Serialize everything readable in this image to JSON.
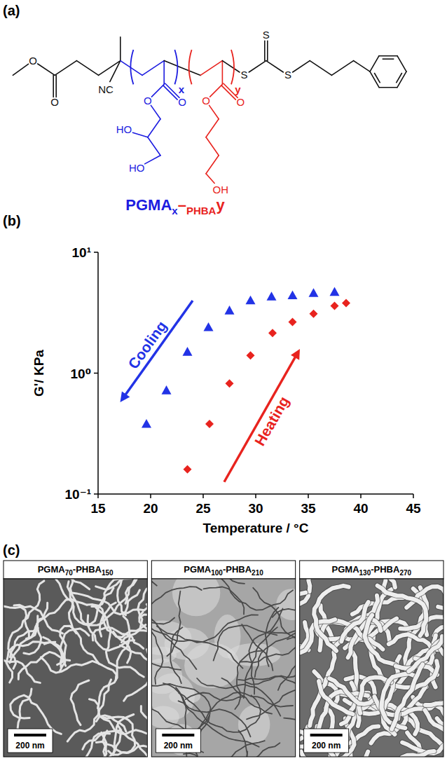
{
  "panel_labels": [
    "(a)",
    "(b)",
    "(c)"
  ],
  "structure": {
    "atoms": [
      "O",
      "O",
      "NC",
      "O",
      "O",
      "HO",
      "HO",
      "O",
      "O",
      "OH",
      "S",
      "S",
      "S"
    ],
    "subscripts": [
      "x",
      "y"
    ],
    "name": [
      "PGMA",
      "x",
      "–",
      "PHBA",
      "y"
    ],
    "colors": [
      "#1c1ce0",
      "#e8231e"
    ]
  },
  "chart_data": {
    "type": "scatter",
    "x_label": "Temperature / °C",
    "y_label": "G'/ KPa",
    "log": "y",
    "grid": false,
    "xlim": [
      15,
      45
    ],
    "xticks": [
      15,
      20,
      25,
      30,
      35,
      40,
      45
    ],
    "ylim": [
      0.1,
      10
    ],
    "yticks": [
      {
        "value": 0.1,
        "label": "10⁻¹"
      },
      {
        "value": 1,
        "label": "10⁰"
      },
      {
        "value": 10,
        "label": "10¹"
      }
    ],
    "series": [
      {
        "name": "Cooling",
        "color": "#2233e6",
        "marker": "triangle",
        "x": [
          19.6,
          21.5,
          23.5,
          25.5,
          27.5,
          29.5,
          31.5,
          33.5,
          35.5,
          37.5
        ],
        "values": [
          0.38,
          0.72,
          1.5,
          2.4,
          3.3,
          4.0,
          4.3,
          4.4,
          4.6,
          4.7
        ]
      },
      {
        "name": "Heating",
        "color": "#e8231e",
        "marker": "diamond",
        "x": [
          23.5,
          25.6,
          27.5,
          29.5,
          31.6,
          33.5,
          35.5,
          37.5,
          38.6
        ],
        "values": [
          0.16,
          0.38,
          0.82,
          1.4,
          2.15,
          2.65,
          3.1,
          3.6,
          3.8
        ]
      }
    ]
  },
  "micrographs": [
    {
      "title": [
        "PGMA",
        "70",
        "-PHBA",
        "150"
      ],
      "scale_bar": "200 nm"
    },
    {
      "title": [
        "PGMA",
        "100",
        "-PHBA",
        "210"
      ],
      "scale_bar": "200 nm"
    },
    {
      "title": [
        "PGMA",
        "130",
        "-PHBA",
        "270"
      ],
      "scale_bar": "200 nm"
    }
  ]
}
